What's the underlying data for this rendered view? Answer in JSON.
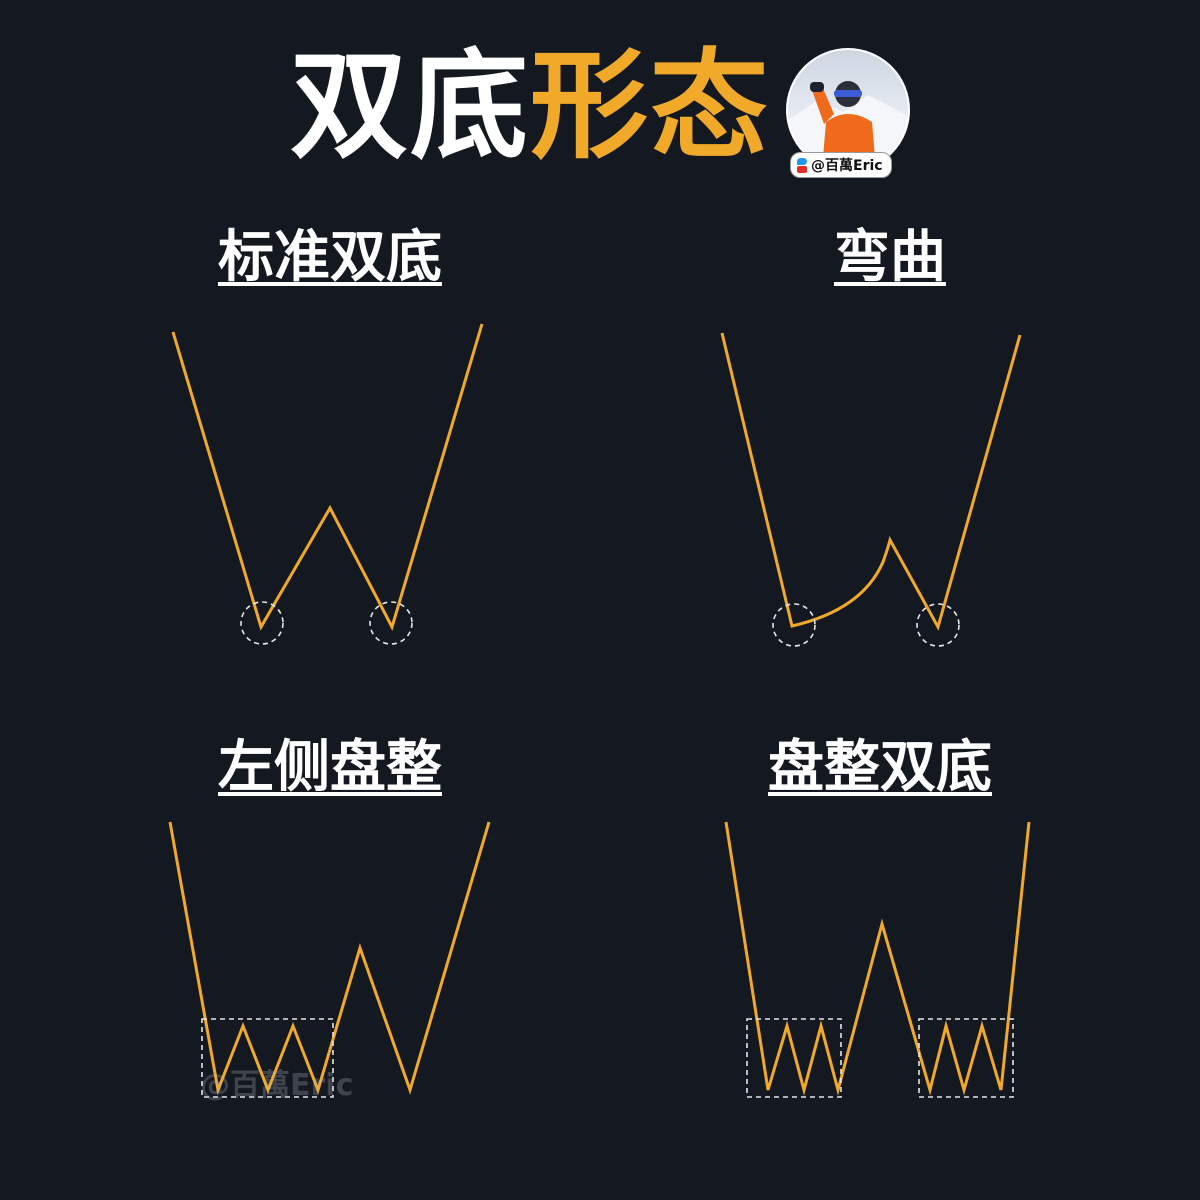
{
  "title": {
    "part1": "双底",
    "part2": "形态"
  },
  "avatar": {
    "handle": "@百萬Eric"
  },
  "sections": [
    {
      "label": "标准双底"
    },
    {
      "label": "弯曲"
    },
    {
      "label": "左侧盘整"
    },
    {
      "label": "盘整双底"
    }
  ],
  "watermark": "@百萬Eric",
  "colors": {
    "background": "#141820",
    "accent": "#f1a92a",
    "text": "#ffffff",
    "marker": "#e6e6e6"
  }
}
